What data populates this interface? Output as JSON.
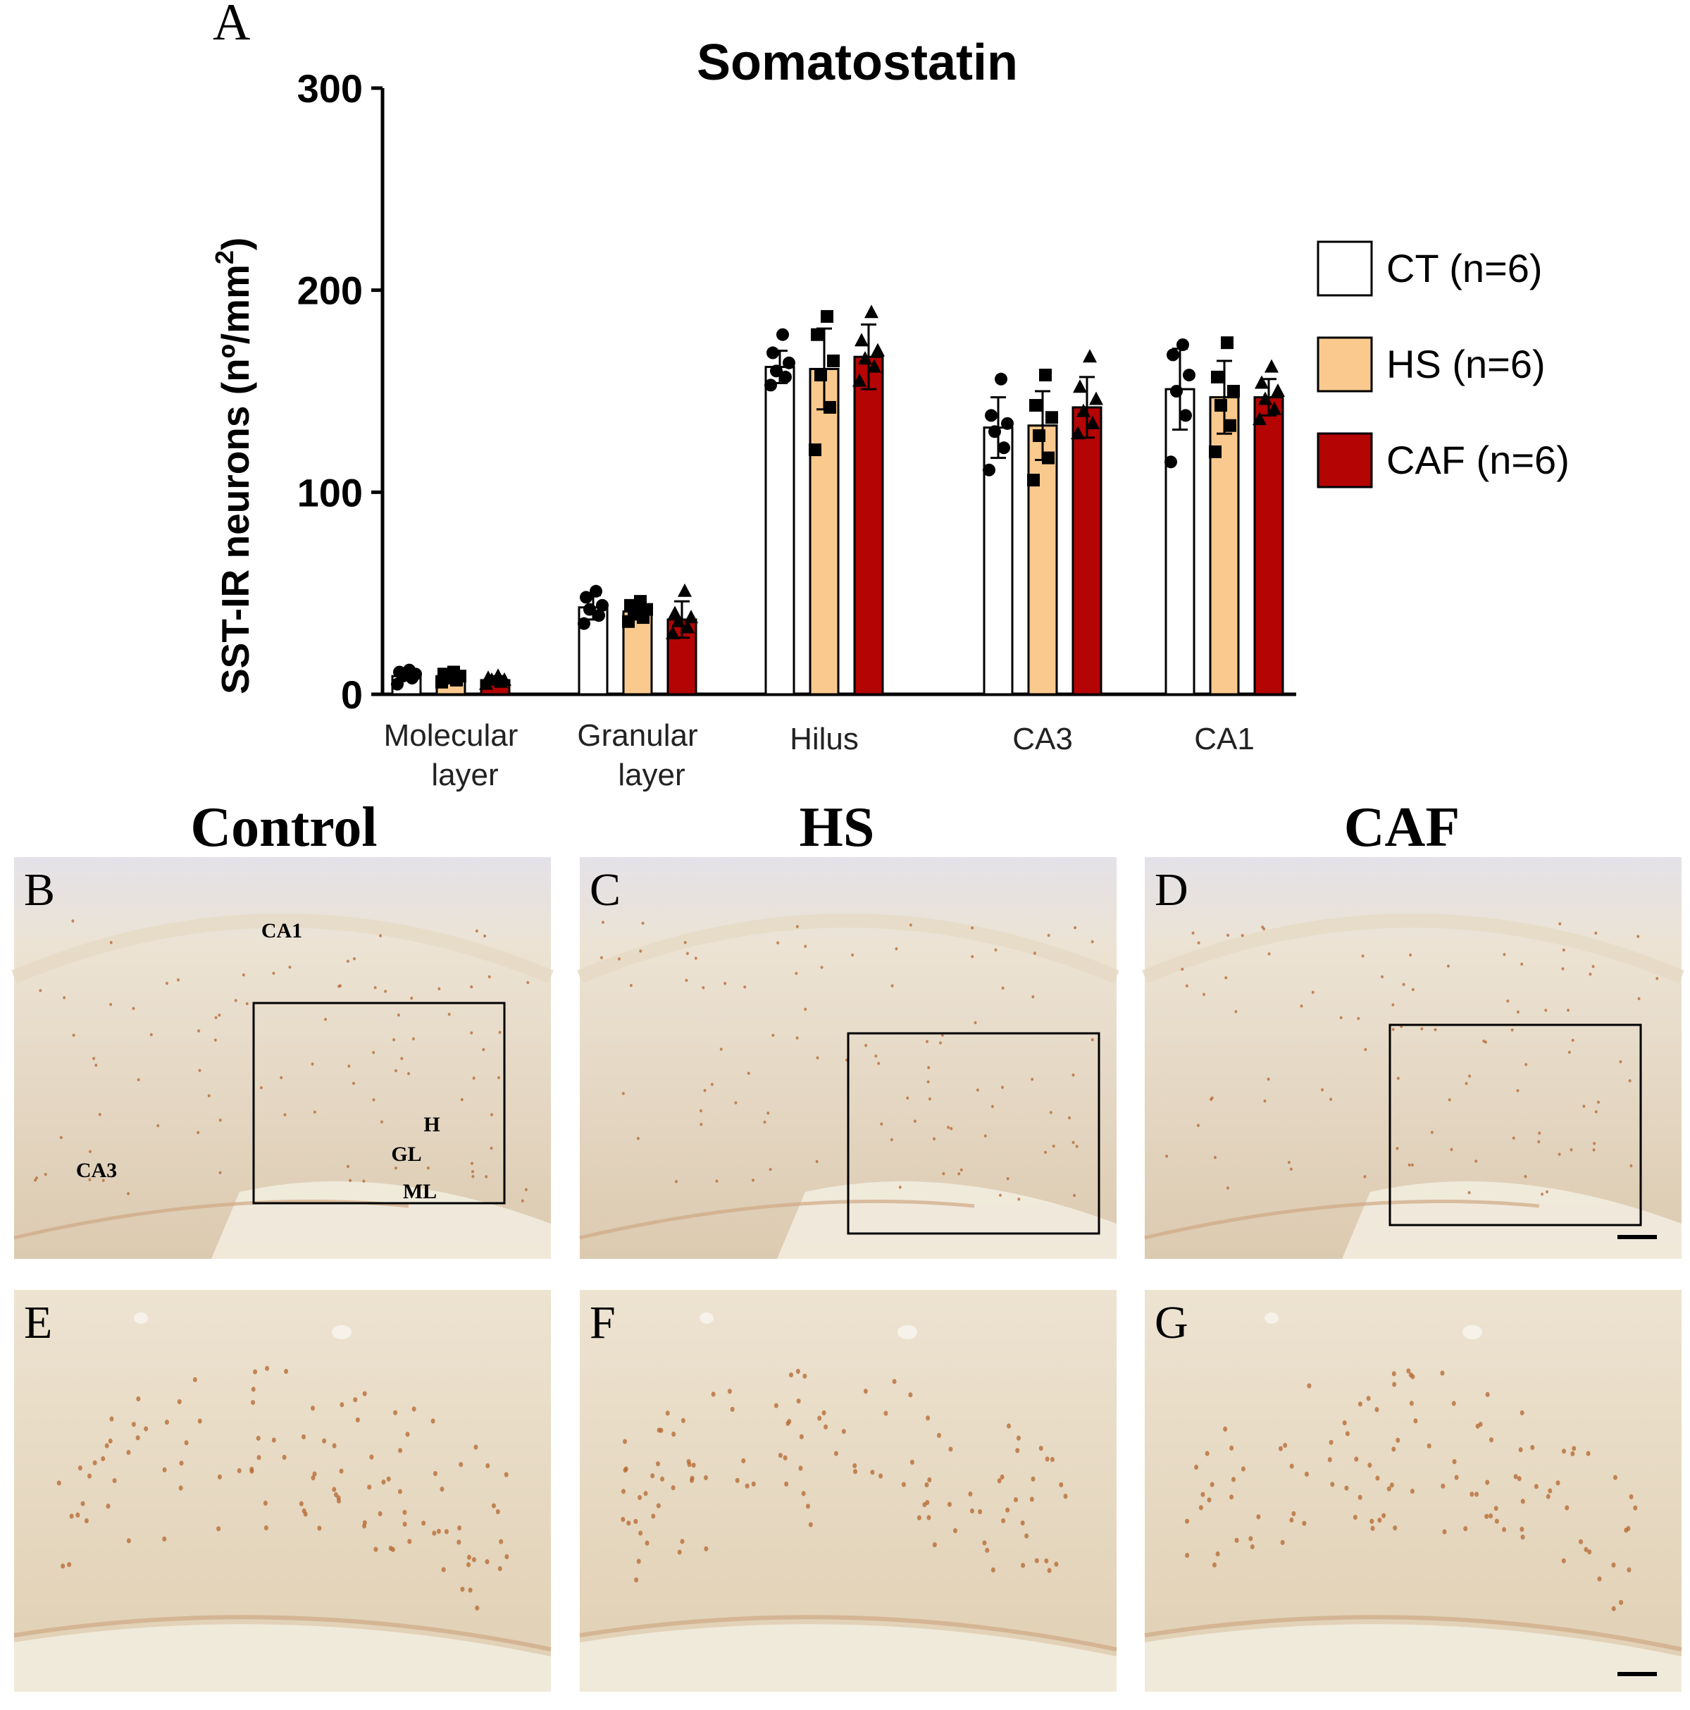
{
  "panel_a_letter": "A",
  "chart_data": {
    "type": "bar",
    "title": "Somatostatin",
    "ylabel": "SST-IR neurons (nº/mm",
    "ylabel_sup": "2",
    "ylabel_end": ")",
    "xlabel": "",
    "ylim": [
      0,
      300
    ],
    "yticks": [
      0,
      100,
      200,
      300
    ],
    "ytick_labels": [
      "0",
      "100",
      "200",
      "300"
    ],
    "categories": [
      [
        "Molecular",
        "layer"
      ],
      [
        "Granular",
        "layer"
      ],
      [
        "Hilus"
      ],
      [
        "CA3"
      ],
      [
        "CA1"
      ]
    ],
    "series": [
      {
        "name": "CT (n=6)",
        "color": "#ffffff",
        "marker": "circle",
        "values": [
          9,
          43,
          162,
          132,
          151
        ],
        "errors": [
          2,
          6,
          8,
          15,
          20
        ],
        "points": [
          [
            5,
            8,
            9,
            10,
            11,
            12
          ],
          [
            35,
            39,
            42,
            44,
            48,
            51
          ],
          [
            153,
            157,
            160,
            164,
            169,
            178
          ],
          [
            111,
            122,
            130,
            134,
            138,
            156
          ],
          [
            115,
            138,
            150,
            158,
            168,
            173
          ]
        ]
      },
      {
        "name": "HS (n=6)",
        "color": "#f9c98e",
        "marker": "square",
        "values": [
          9,
          41,
          161,
          133,
          147
        ],
        "errors": [
          2,
          4,
          20,
          17,
          18
        ],
        "points": [
          [
            6,
            7,
            8,
            9,
            10,
            11
          ],
          [
            36,
            38,
            40,
            42,
            44,
            46
          ],
          [
            121,
            142,
            158,
            165,
            178,
            187
          ],
          [
            106,
            117,
            128,
            137,
            143,
            158
          ],
          [
            120,
            133,
            143,
            150,
            157,
            174
          ]
        ]
      },
      {
        "name": "CAF (n=6)",
        "color": "#b40404",
        "marker": "triangle",
        "values": [
          7,
          37,
          167,
          142,
          147
        ],
        "errors": [
          2,
          9,
          16,
          15,
          9
        ],
        "points": [
          [
            5,
            6,
            7,
            7,
            8,
            9
          ],
          [
            30,
            33,
            36,
            38,
            40,
            51
          ],
          [
            155,
            162,
            166,
            170,
            175,
            189
          ],
          [
            129,
            134,
            140,
            146,
            152,
            167
          ],
          [
            136,
            141,
            146,
            150,
            154,
            162
          ]
        ]
      }
    ],
    "legend_position": "right"
  },
  "micrographs": {
    "column_titles": [
      "Control",
      "HS",
      "CAF"
    ],
    "panels": [
      {
        "letter": "B",
        "kind": "low"
      },
      {
        "letter": "C",
        "kind": "low"
      },
      {
        "letter": "D",
        "kind": "low"
      },
      {
        "letter": "E",
        "kind": "high"
      },
      {
        "letter": "F",
        "kind": "high"
      },
      {
        "letter": "G",
        "kind": "high"
      }
    ],
    "region_labels": [
      "CA1",
      "H",
      "GL",
      "CA3",
      "ML"
    ]
  },
  "colors": {
    "tissue_light": "#ece3d2",
    "tissue_dark": "#dccbb0",
    "cell": "#b5652e",
    "band": "#f2ecdf"
  }
}
